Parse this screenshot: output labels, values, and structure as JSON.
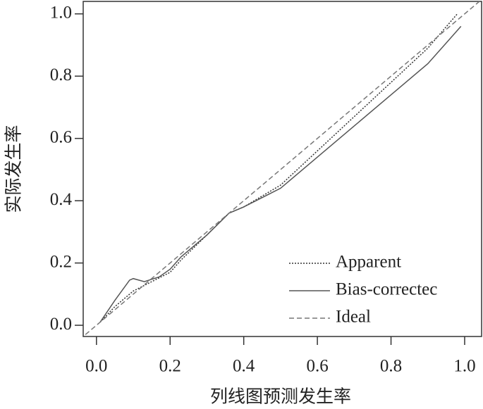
{
  "chart_data": {
    "type": "line",
    "xlabel": "列线图预测发生率",
    "ylabel": "实际发生率",
    "xlim": [
      -0.036,
      1.046
    ],
    "ylim": [
      -0.036,
      1.04
    ],
    "xticks": [
      {
        "value": 0,
        "label": "0.0"
      },
      {
        "value": 0.2,
        "label": "0.2"
      },
      {
        "value": 0.4,
        "label": "0.4"
      },
      {
        "value": 0.6,
        "label": "0.6"
      },
      {
        "value": 0.8,
        "label": "0.8"
      },
      {
        "value": 1,
        "label": "1.0"
      }
    ],
    "yticks": [
      {
        "value": 0,
        "label": "0.0"
      },
      {
        "value": 0.2,
        "label": "0.2"
      },
      {
        "value": 0.4,
        "label": "0.4"
      },
      {
        "value": 0.6,
        "label": "0.6"
      },
      {
        "value": 0.8,
        "label": "0.8"
      },
      {
        "value": 1,
        "label": "1.0"
      }
    ],
    "legend": "bottom-right",
    "series": [
      {
        "name": "Apparent",
        "color": "#333333",
        "linestyle": "dotted",
        "x": [
          0.01,
          0.05,
          0.1,
          0.15,
          0.2,
          0.23,
          0.3,
          0.36,
          0.4,
          0.5,
          0.6,
          0.7,
          0.8,
          0.9,
          0.98
        ],
        "values": [
          0.01,
          0.06,
          0.11,
          0.14,
          0.17,
          0.21,
          0.29,
          0.36,
          0.38,
          0.45,
          0.56,
          0.67,
          0.78,
          0.89,
          1.0
        ]
      },
      {
        "name": "Bias-correctec",
        "color": "#555555",
        "linestyle": "solid",
        "x": [
          0.01,
          0.05,
          0.09,
          0.1,
          0.13,
          0.17,
          0.2,
          0.23,
          0.3,
          0.36,
          0.4,
          0.45,
          0.5,
          0.6,
          0.7,
          0.8,
          0.9,
          0.99
        ],
        "values": [
          0.01,
          0.08,
          0.145,
          0.15,
          0.14,
          0.155,
          0.18,
          0.22,
          0.29,
          0.36,
          0.38,
          0.41,
          0.44,
          0.54,
          0.64,
          0.74,
          0.84,
          0.96
        ]
      },
      {
        "name": "Ideal",
        "color": "#777777",
        "linestyle": "dashed",
        "x": [
          -0.03,
          1.04
        ],
        "values": [
          -0.03,
          1.04
        ]
      }
    ]
  }
}
